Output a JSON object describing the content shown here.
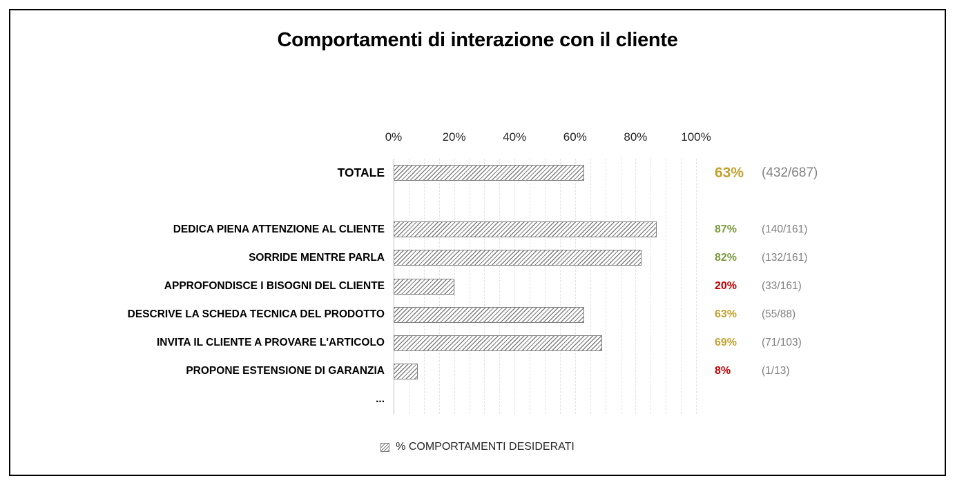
{
  "colors": {
    "gold": "#C3A130",
    "green": "#7A9A3E",
    "red": "#C00000",
    "fraction_gray": "#808080",
    "bar_hatch": "#7F7F7F",
    "gridline": "#E2E2E2",
    "axis_line": "#BFBFBF"
  },
  "chart_data": {
    "type": "bar",
    "orientation": "horizontal",
    "title": "Comportamenti di interazione con il cliente",
    "bar_pattern": "diagonal-hatch-gray",
    "x_axis": {
      "position": "top",
      "ticks": [
        "0%",
        "20%",
        "40%",
        "60%",
        "80%",
        "100%"
      ],
      "range": [
        0,
        100
      ],
      "gridline_step_pct": 5,
      "gridlines": "dashed"
    },
    "legend": [
      {
        "label": "% COMPORTAMENTI DESIDERATI",
        "swatch": "hatched-gray-square"
      }
    ],
    "rows": [
      {
        "label": "TOTALE",
        "value_pct": 63,
        "percent_label": "63%",
        "fraction_label": "(432/687)",
        "status_color": "gold",
        "emphasis": true
      },
      {
        "label": "",
        "value_pct": null,
        "percent_label": "",
        "fraction_label": "",
        "status_color": null,
        "emphasis": false
      },
      {
        "label": "DEDICA PIENA ATTENZIONE AL CLIENTE",
        "value_pct": 87,
        "percent_label": "87%",
        "fraction_label": "(140/161)",
        "status_color": "green",
        "emphasis": false
      },
      {
        "label": "SORRIDE MENTRE PARLA",
        "value_pct": 82,
        "percent_label": "82%",
        "fraction_label": "(132/161)",
        "status_color": "green",
        "emphasis": false
      },
      {
        "label": "APPROFONDISCE I BISOGNI DEL CLIENTE",
        "value_pct": 20,
        "percent_label": "20%",
        "fraction_label": "(33/161)",
        "status_color": "red",
        "emphasis": false
      },
      {
        "label": "DESCRIVE LA SCHEDA TECNICA DEL PRODOTTO",
        "value_pct": 63,
        "percent_label": "63%",
        "fraction_label": "(55/88)",
        "status_color": "gold",
        "emphasis": false
      },
      {
        "label": "INVITA IL CLIENTE A PROVARE L'ARTICOLO",
        "value_pct": 69,
        "percent_label": "69%",
        "fraction_label": "(71/103)",
        "status_color": "gold",
        "emphasis": false
      },
      {
        "label": "PROPONE ESTENSIONE DI GARANZIA",
        "value_pct": 8,
        "percent_label": "8%",
        "fraction_label": "(1/13)",
        "status_color": "red",
        "emphasis": false
      },
      {
        "label": "...",
        "value_pct": null,
        "percent_label": "",
        "fraction_label": "",
        "status_color": null,
        "emphasis": false
      }
    ]
  }
}
